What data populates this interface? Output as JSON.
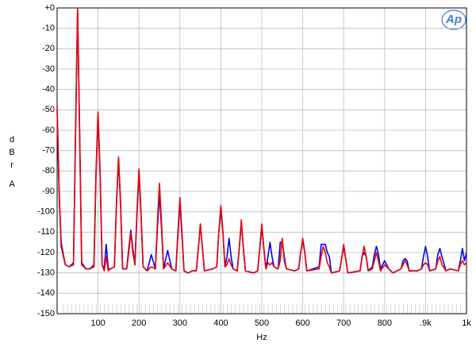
{
  "chart_data": {
    "type": "line",
    "logo": "Ap",
    "xlabel": "Hz",
    "ylabel": [
      "dBr",
      "A"
    ],
    "grid": true,
    "xlim": [
      0,
      1000
    ],
    "ylim": [
      -150,
      0
    ],
    "xticks": [
      100,
      200,
      300,
      400,
      500,
      600,
      700,
      800,
      {
        "value": 900,
        "label": ".9k"
      },
      {
        "value": 1000,
        "label": "1k"
      }
    ],
    "yticks": [
      {
        "value": 0,
        "label": "+0"
      },
      -10,
      -20,
      -30,
      -40,
      -50,
      -60,
      -70,
      -80,
      -90,
      -100,
      -110,
      -120,
      -130,
      -140,
      -150
    ],
    "x": [
      0,
      5,
      10,
      20,
      30,
      40,
      45,
      50,
      55,
      60,
      70,
      80,
      90,
      95,
      100,
      105,
      110,
      115,
      120,
      125,
      130,
      140,
      145,
      150,
      155,
      160,
      170,
      175,
      180,
      185,
      190,
      195,
      200,
      205,
      210,
      220,
      230,
      240,
      245,
      250,
      255,
      260,
      270,
      280,
      290,
      295,
      300,
      305,
      310,
      320,
      330,
      340,
      345,
      350,
      355,
      360,
      380,
      390,
      395,
      400,
      405,
      410,
      415,
      420,
      425,
      430,
      440,
      445,
      450,
      455,
      460,
      480,
      490,
      495,
      500,
      505,
      510,
      515,
      520,
      525,
      530,
      540,
      545,
      550,
      555,
      560,
      580,
      590,
      595,
      600,
      605,
      610,
      640,
      645,
      650,
      655,
      660,
      665,
      670,
      690,
      695,
      700,
      705,
      710,
      740,
      745,
      750,
      755,
      760,
      770,
      775,
      780,
      785,
      790,
      800,
      810,
      820,
      830,
      840,
      845,
      850,
      855,
      860,
      880,
      890,
      895,
      900,
      905,
      910,
      925,
      930,
      935,
      940,
      950,
      960,
      980,
      985,
      990,
      995,
      1000
    ],
    "series": [
      {
        "color": "#0000ee",
        "values": [
          -50,
          -92,
          -117,
          -126,
          -127,
          -125,
          -62,
          -1,
          -62,
          -125,
          -128,
          -128,
          -126,
          -82,
          -53,
          -82,
          -126,
          -128,
          -116,
          -128,
          -128,
          -127,
          -97,
          -74,
          -97,
          -128,
          -128,
          -118,
          -109,
          -118,
          -126,
          -102,
          -80,
          -102,
          -127,
          -129,
          -121,
          -128,
          -108,
          -91,
          -108,
          -128,
          -119,
          -128,
          -129,
          -112,
          -95,
          -112,
          -129,
          -130,
          -129,
          -129,
          -118,
          -106,
          -118,
          -129,
          -128,
          -127,
          -110,
          -99,
          -110,
          -127,
          -122,
          -113,
          -122,
          -128,
          -129,
          -118,
          -105,
          -118,
          -129,
          -130,
          -129,
          -118,
          -107,
          -118,
          -128,
          -122,
          -115,
          -122,
          -127,
          -128,
          -115,
          -115,
          -122,
          -128,
          -129,
          -128,
          -120,
          -114,
          -120,
          -129,
          -127,
          -116,
          -116,
          -116,
          -120,
          -122,
          -130,
          -129,
          -123,
          -117,
          -123,
          -130,
          -129,
          -122,
          -120,
          -122,
          -129,
          -127,
          -121,
          -117,
          -121,
          -128,
          -124,
          -128,
          -130,
          -129,
          -128,
          -124,
          -123,
          -124,
          -129,
          -129,
          -128,
          -122,
          -117,
          -122,
          -129,
          -128,
          -121,
          -118,
          -122,
          -129,
          -128,
          -129,
          -124,
          -118,
          -124,
          -120
        ]
      },
      {
        "color": "#ee0000",
        "values": [
          -48,
          -90,
          -115,
          -126,
          -127,
          -126,
          -60,
          0,
          -60,
          -126,
          -128,
          -128,
          -127,
          -80,
          -51,
          -80,
          -126,
          -129,
          -122,
          -129,
          -128,
          -127,
          -95,
          -73,
          -95,
          -128,
          -128,
          -120,
          -110,
          -120,
          -126,
          -100,
          -79,
          -100,
          -127,
          -129,
          -127,
          -128,
          -105,
          -86,
          -105,
          -128,
          -125,
          -128,
          -129,
          -110,
          -93,
          -110,
          -129,
          -130,
          -129,
          -129,
          -118,
          -106,
          -118,
          -129,
          -128,
          -127,
          -110,
          -97,
          -110,
          -127,
          -126,
          -123,
          -126,
          -128,
          -129,
          -118,
          -104,
          -118,
          -129,
          -130,
          -129,
          -118,
          -106,
          -118,
          -128,
          -125,
          -126,
          -125,
          -127,
          -128,
          -124,
          -113,
          -124,
          -128,
          -129,
          -128,
          -120,
          -113,
          -120,
          -129,
          -128,
          -122,
          -117,
          -120,
          -125,
          -127,
          -130,
          -129,
          -123,
          -116,
          -123,
          -130,
          -129,
          -122,
          -117,
          -122,
          -129,
          -128,
          -124,
          -120,
          -124,
          -129,
          -126,
          -128,
          -130,
          -129,
          -128,
          -126,
          -124,
          -126,
          -129,
          -129,
          -128,
          -126,
          -125,
          -126,
          -129,
          -128,
          -124,
          -122,
          -126,
          -129,
          -128,
          -129,
          -126,
          -124,
          -126,
          -125
        ]
      }
    ]
  }
}
